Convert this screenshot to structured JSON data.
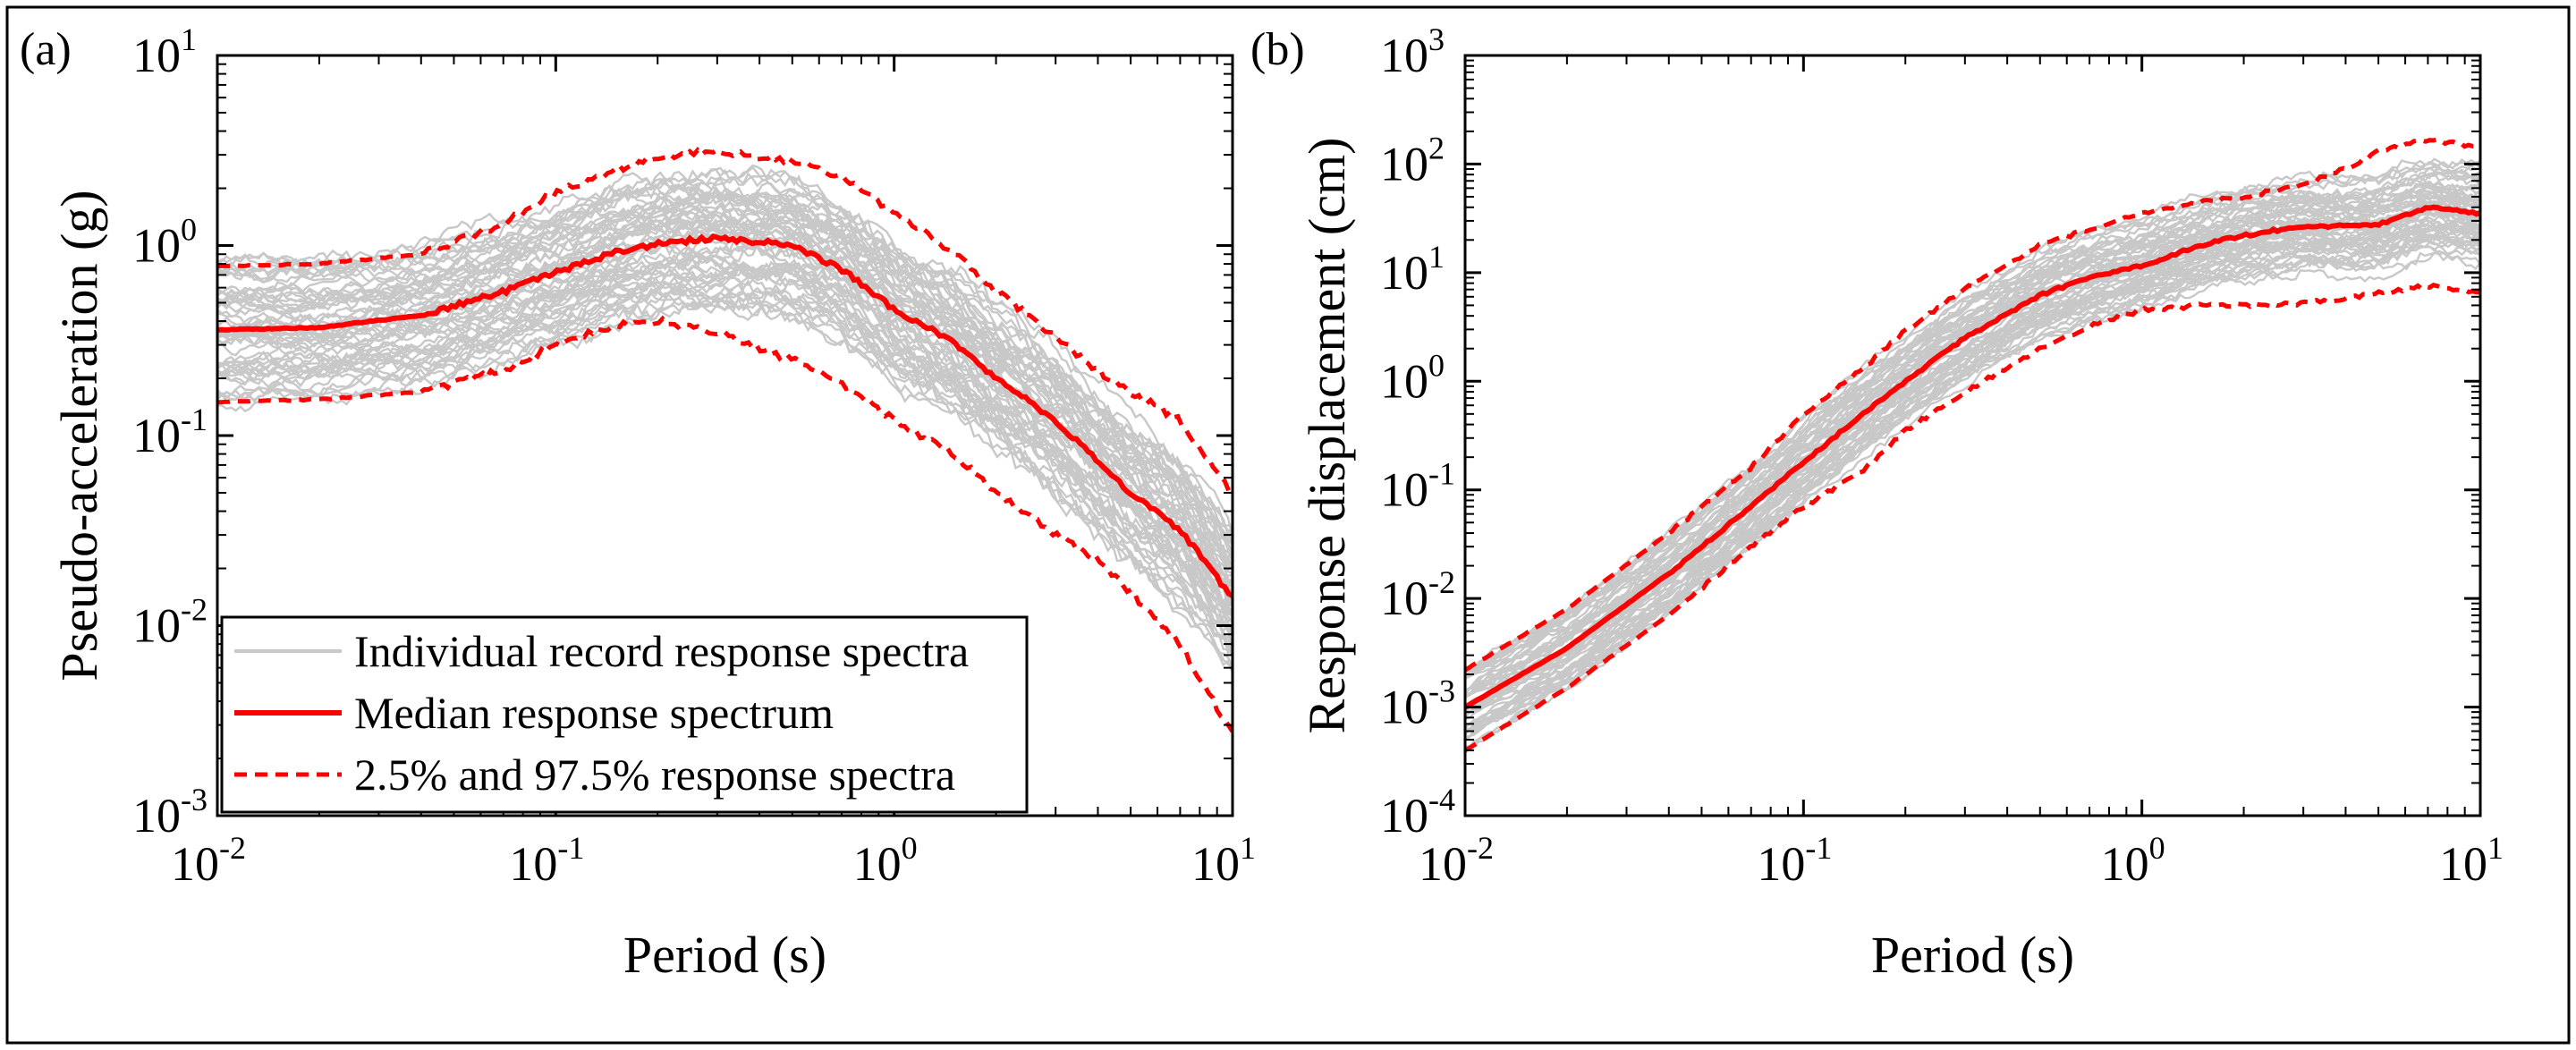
{
  "figure_labels": {
    "panel_a": "(a)",
    "panel_b": "(b)"
  },
  "colors": {
    "individual": "#c8c8c8",
    "median": "#ff0000",
    "bounds": "#ff0000",
    "axis": "#000000",
    "frame": "#000000"
  },
  "legend": {
    "individual_label": "Individual record response spectra",
    "median_label": "Median response spectrum",
    "bounds_label": "2.5% and 97.5% response spectra"
  },
  "chart_data": [
    {
      "type": "line",
      "panel": "(a)",
      "title": "",
      "xlabel": "Period (s)",
      "ylabel": "Pseudo-acceleration (g)",
      "xscale": "log",
      "yscale": "log",
      "xlim": [
        0.01,
        10
      ],
      "ylim": [
        0.001,
        10
      ],
      "x_ticks": [
        {
          "base": "10",
          "exp": "-2"
        },
        {
          "base": "10",
          "exp": "-1"
        },
        {
          "base": "10",
          "exp": "0"
        },
        {
          "base": "10",
          "exp": "1"
        }
      ],
      "y_ticks": [
        {
          "base": "10",
          "exp": "-3"
        },
        {
          "base": "10",
          "exp": "-2"
        },
        {
          "base": "10",
          "exp": "-1"
        },
        {
          "base": "10",
          "exp": "0"
        },
        {
          "base": "10",
          "exp": "1"
        }
      ],
      "legend_position": "bottom-left",
      "x": [
        0.01,
        0.02,
        0.04,
        0.07,
        0.1,
        0.15,
        0.2,
        0.3,
        0.5,
        0.7,
        1.0,
        1.5,
        2.0,
        3.0,
        4.0,
        5.0,
        7.0,
        10.0
      ],
      "series": [
        {
          "name": "Median response spectrum",
          "values": [
            0.36,
            0.37,
            0.43,
            0.57,
            0.72,
            0.92,
            1.02,
            1.1,
            1.0,
            0.75,
            0.46,
            0.31,
            0.2,
            0.12,
            0.073,
            0.05,
            0.032,
            0.014
          ]
        },
        {
          "name": "97.5% response spectrum",
          "values": [
            0.78,
            0.8,
            0.9,
            1.3,
            1.9,
            2.5,
            2.95,
            3.1,
            2.8,
            2.3,
            1.5,
            0.92,
            0.58,
            0.33,
            0.22,
            0.17,
            0.12,
            0.05
          ]
        },
        {
          "name": "2.5% response spectrum",
          "values": [
            0.15,
            0.155,
            0.17,
            0.22,
            0.3,
            0.38,
            0.4,
            0.35,
            0.25,
            0.19,
            0.12,
            0.08,
            0.05,
            0.03,
            0.022,
            0.015,
            0.008,
            0.0027
          ]
        }
      ],
      "individual_records": {
        "count": 60,
        "median_ref": "Median response spectrum",
        "spread_low": 0.45,
        "spread_high": 2.3
      }
    },
    {
      "type": "line",
      "panel": "(b)",
      "title": "",
      "xlabel": "Period (s)",
      "ylabel": "Response displacement (cm)",
      "xscale": "log",
      "yscale": "log",
      "xlim": [
        0.01,
        10
      ],
      "ylim": [
        0.0001,
        1000
      ],
      "x_ticks": [
        {
          "base": "10",
          "exp": "-2"
        },
        {
          "base": "10",
          "exp": "-1"
        },
        {
          "base": "10",
          "exp": "0"
        },
        {
          "base": "10",
          "exp": "1"
        }
      ],
      "y_ticks": [
        {
          "base": "10",
          "exp": "-4"
        },
        {
          "base": "10",
          "exp": "-3"
        },
        {
          "base": "10",
          "exp": "-2"
        },
        {
          "base": "10",
          "exp": "-1"
        },
        {
          "base": "10",
          "exp": "0"
        },
        {
          "base": "10",
          "exp": "1"
        },
        {
          "base": "10",
          "exp": "2"
        },
        {
          "base": "10",
          "exp": "3"
        }
      ],
      "x": [
        0.01,
        0.02,
        0.04,
        0.07,
        0.1,
        0.15,
        0.2,
        0.3,
        0.5,
        0.7,
        1.0,
        1.5,
        2.0,
        3.0,
        4.0,
        5.0,
        7.0,
        10.0
      ],
      "series": [
        {
          "name": "Median response spectrum",
          "values": [
            0.001,
            0.0035,
            0.017,
            0.07,
            0.18,
            0.5,
            1.0,
            2.5,
            6.2,
            9.0,
            11.5,
            18.0,
            22.0,
            27.0,
            27.0,
            28.0,
            40.0,
            35.0
          ]
        },
        {
          "name": "97.5% response spectrum",
          "values": [
            0.0022,
            0.008,
            0.04,
            0.16,
            0.5,
            1.3,
            2.9,
            7.0,
            18.0,
            25.0,
            35.0,
            45.0,
            50.0,
            65.0,
            90.0,
            130.0,
            170.0,
            140.0
          ]
        },
        {
          "name": "2.5% response spectrum",
          "values": [
            0.0004,
            0.0015,
            0.007,
            0.03,
            0.07,
            0.15,
            0.35,
            0.8,
            2.0,
            3.2,
            4.5,
            5.0,
            5.0,
            5.2,
            5.8,
            6.5,
            7.5,
            6.5
          ]
        }
      ],
      "individual_records": {
        "count": 60,
        "median_ref": "Median response spectrum",
        "spread_low": 0.45,
        "spread_high": 2.3
      }
    }
  ]
}
